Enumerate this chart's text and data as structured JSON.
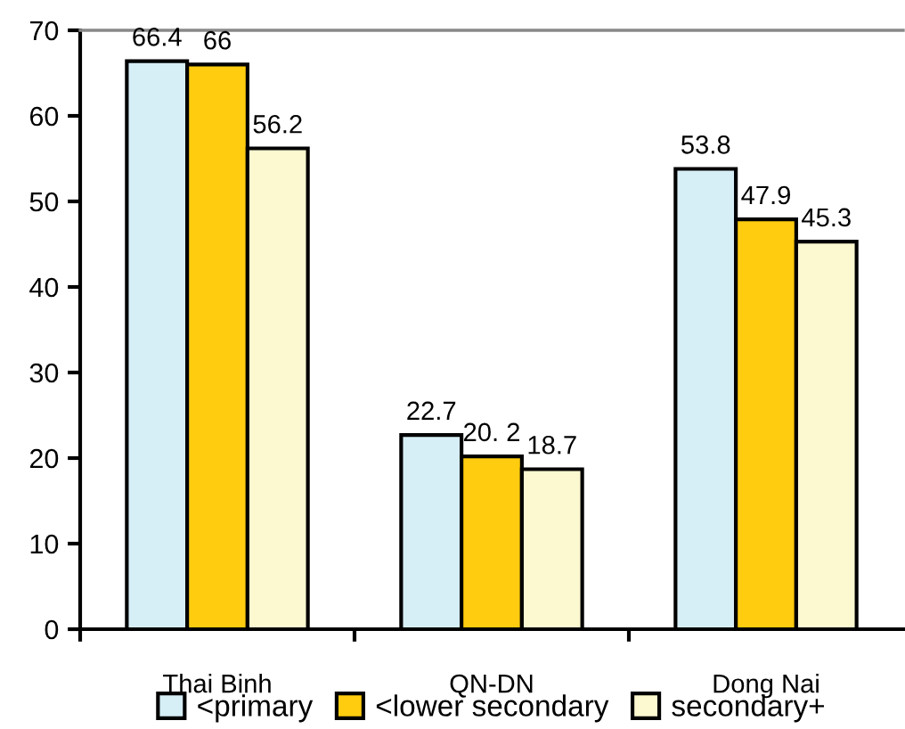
{
  "chart_data": {
    "type": "bar",
    "categories": [
      "Thai Binh",
      "QN-DN",
      "Dong Nai"
    ],
    "series": [
      {
        "name": "<primary",
        "color": "#d6eef6",
        "values": [
          66.4,
          22.7,
          53.8
        ],
        "value_labels": [
          "66.4",
          "22.7",
          "53.8"
        ]
      },
      {
        "name": "<lower secondary",
        "color": "#ffcc0f",
        "values": [
          66,
          20.2,
          47.9
        ],
        "value_labels": [
          "66",
          "20. 2",
          "47.9"
        ]
      },
      {
        "name": "secondary+",
        "color": "#fcf8d0",
        "values": [
          56.2,
          18.7,
          45.3
        ],
        "value_labels": [
          "56.2",
          "18.7",
          "45.3"
        ]
      }
    ],
    "ylim": [
      0,
      70
    ],
    "yticks": [
      0,
      10,
      20,
      30,
      40,
      50,
      60,
      70
    ],
    "grid": false,
    "legend": "bottom"
  }
}
